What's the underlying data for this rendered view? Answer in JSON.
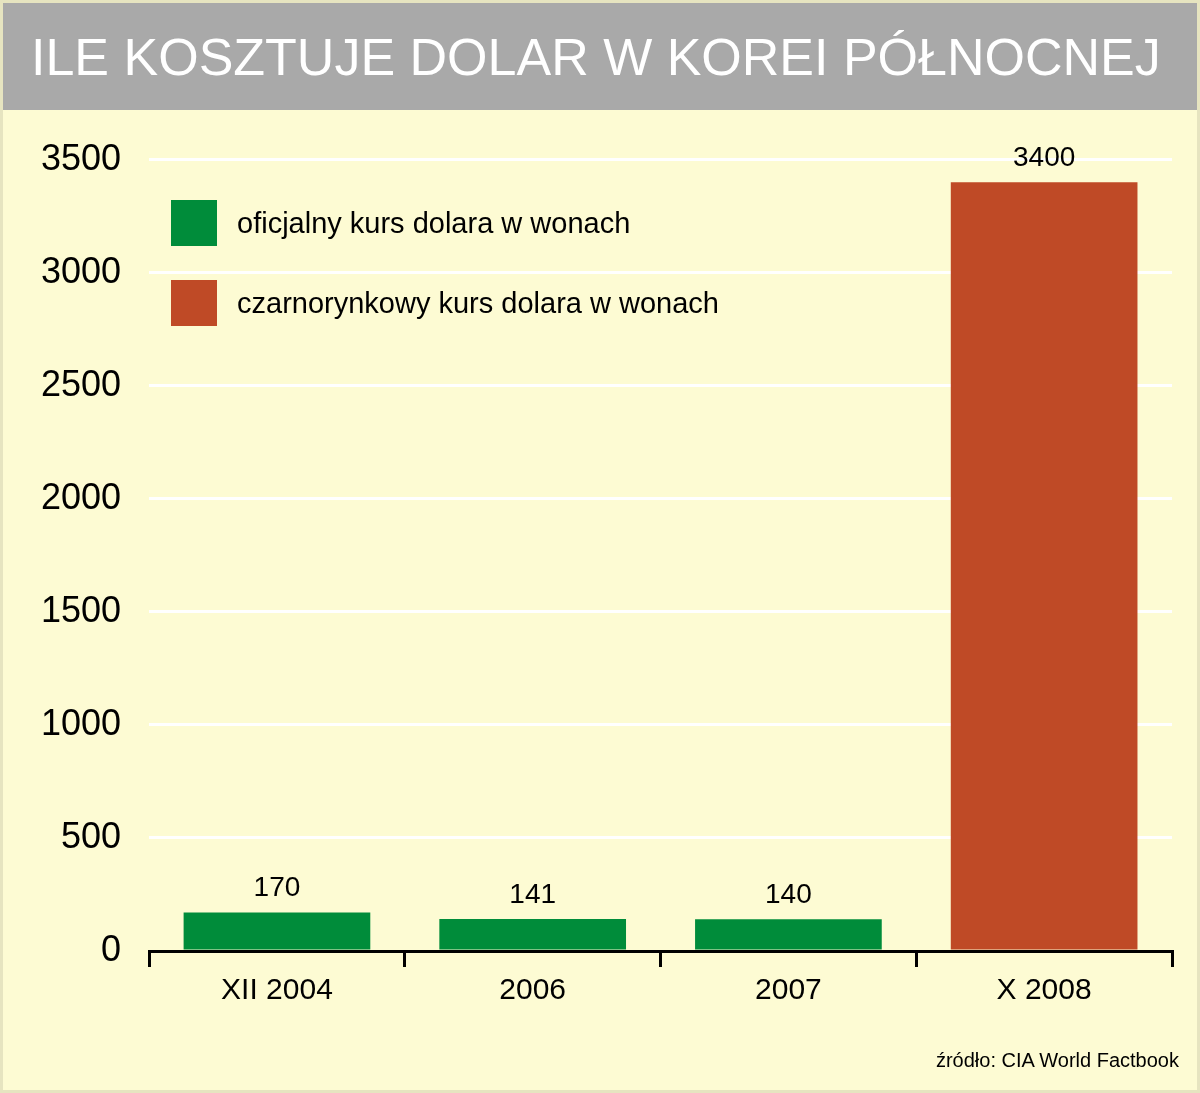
{
  "chart_data": {
    "type": "bar",
    "title": "ILE KOSZTUJE DOLAR W KOREI PÓŁNOCNEJ",
    "categories": [
      "XII 2004",
      "2006",
      "2007",
      "X 2008"
    ],
    "series": [
      {
        "name": "oficjalny kurs dolara w wonach",
        "color": "#008c3a",
        "values": [
          170,
          141,
          140,
          null
        ]
      },
      {
        "name": "czarnorynkowy kurs dolara w wonach",
        "color": "#bf4a26",
        "values": [
          null,
          null,
          null,
          3400
        ]
      }
    ],
    "ylim": [
      0,
      3500
    ],
    "yticks": [
      0,
      500,
      1000,
      1500,
      2000,
      2500,
      3000,
      3500
    ],
    "grid": "y",
    "legend": "top left",
    "data_labels": true,
    "annotations": [
      "źródło: CIA World Factbook"
    ]
  }
}
